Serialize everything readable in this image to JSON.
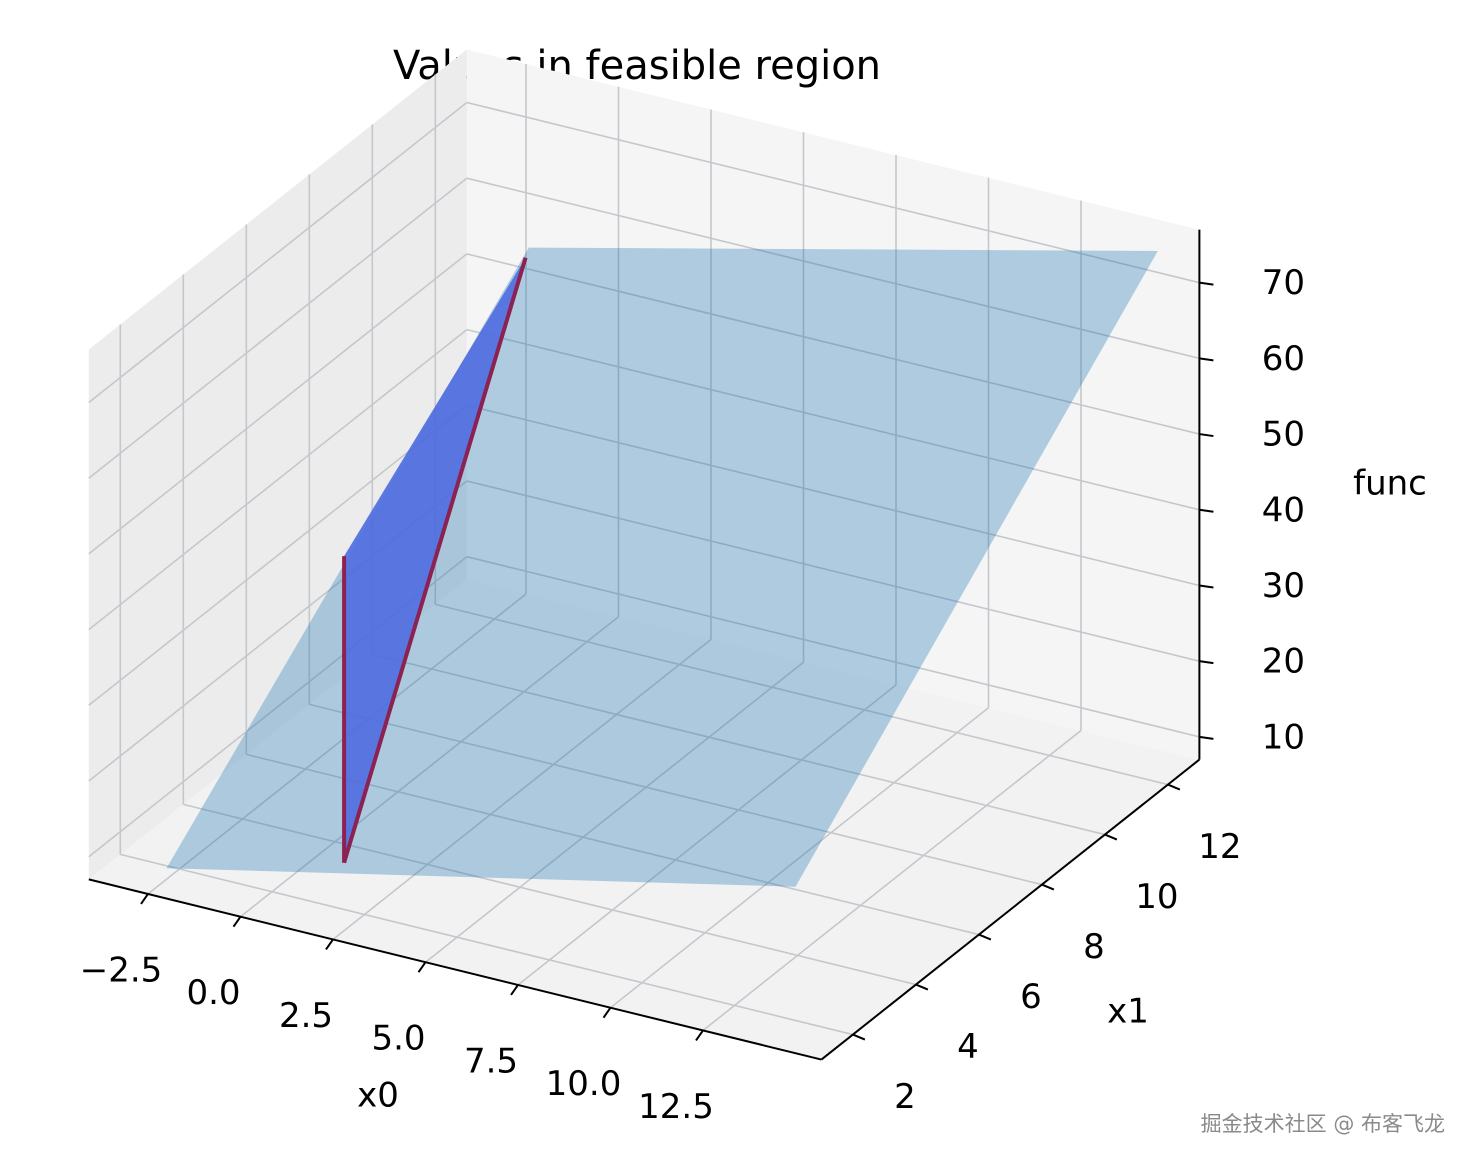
{
  "chart_data": {
    "type": "surface3d",
    "title": "Values in feasible region",
    "xlabel": "x0",
    "ylabel": "x1",
    "zlabel": "func",
    "xlim": [
      -4.1,
      15.7
    ],
    "ylim": [
      1,
      13
    ],
    "zlim": [
      7,
      77
    ],
    "xticks": [
      {
        "value": -2.5,
        "label": "−2.5"
      },
      {
        "value": 0,
        "label": "0.0"
      },
      2.5,
      {
        "value": 5,
        "label": "5.0"
      },
      7.5,
      {
        "value": 10,
        "label": "10.0"
      },
      12.5
    ],
    "yticks": [
      2,
      4,
      6,
      8,
      10,
      12
    ],
    "zticks": [
      10,
      20,
      30,
      40,
      50,
      60,
      70
    ],
    "grid": true,
    "planes": [
      {
        "color": "#1f77b4",
        "opacity": 0.33,
        "x": [
          -2,
          15,
          15,
          -2
        ],
        "y": [
          1,
          1,
          12.5,
          12.5
        ],
        "z": [
          11,
          29,
          75,
          55
        ]
      },
      {
        "color": "#4f6be0",
        "opacity": 0.9,
        "x": [
          2.8,
          2.8,
          -2
        ],
        "y": [
          1,
          1,
          12.4
        ],
        "z": [
          58,
          17.5,
          54
        ]
      }
    ],
    "lines": [
      {
        "color": "#8b2252",
        "x": [
          2.8,
          2.8
        ],
        "y": [
          1,
          1
        ],
        "z": [
          17.5,
          58
        ]
      },
      {
        "color": "#8b2252",
        "x": [
          2.8,
          -2
        ],
        "y": [
          1,
          12.4
        ],
        "z": [
          17.5,
          54
        ]
      }
    ]
  },
  "watermark": "掘金技术社区 @ 布客飞龙"
}
